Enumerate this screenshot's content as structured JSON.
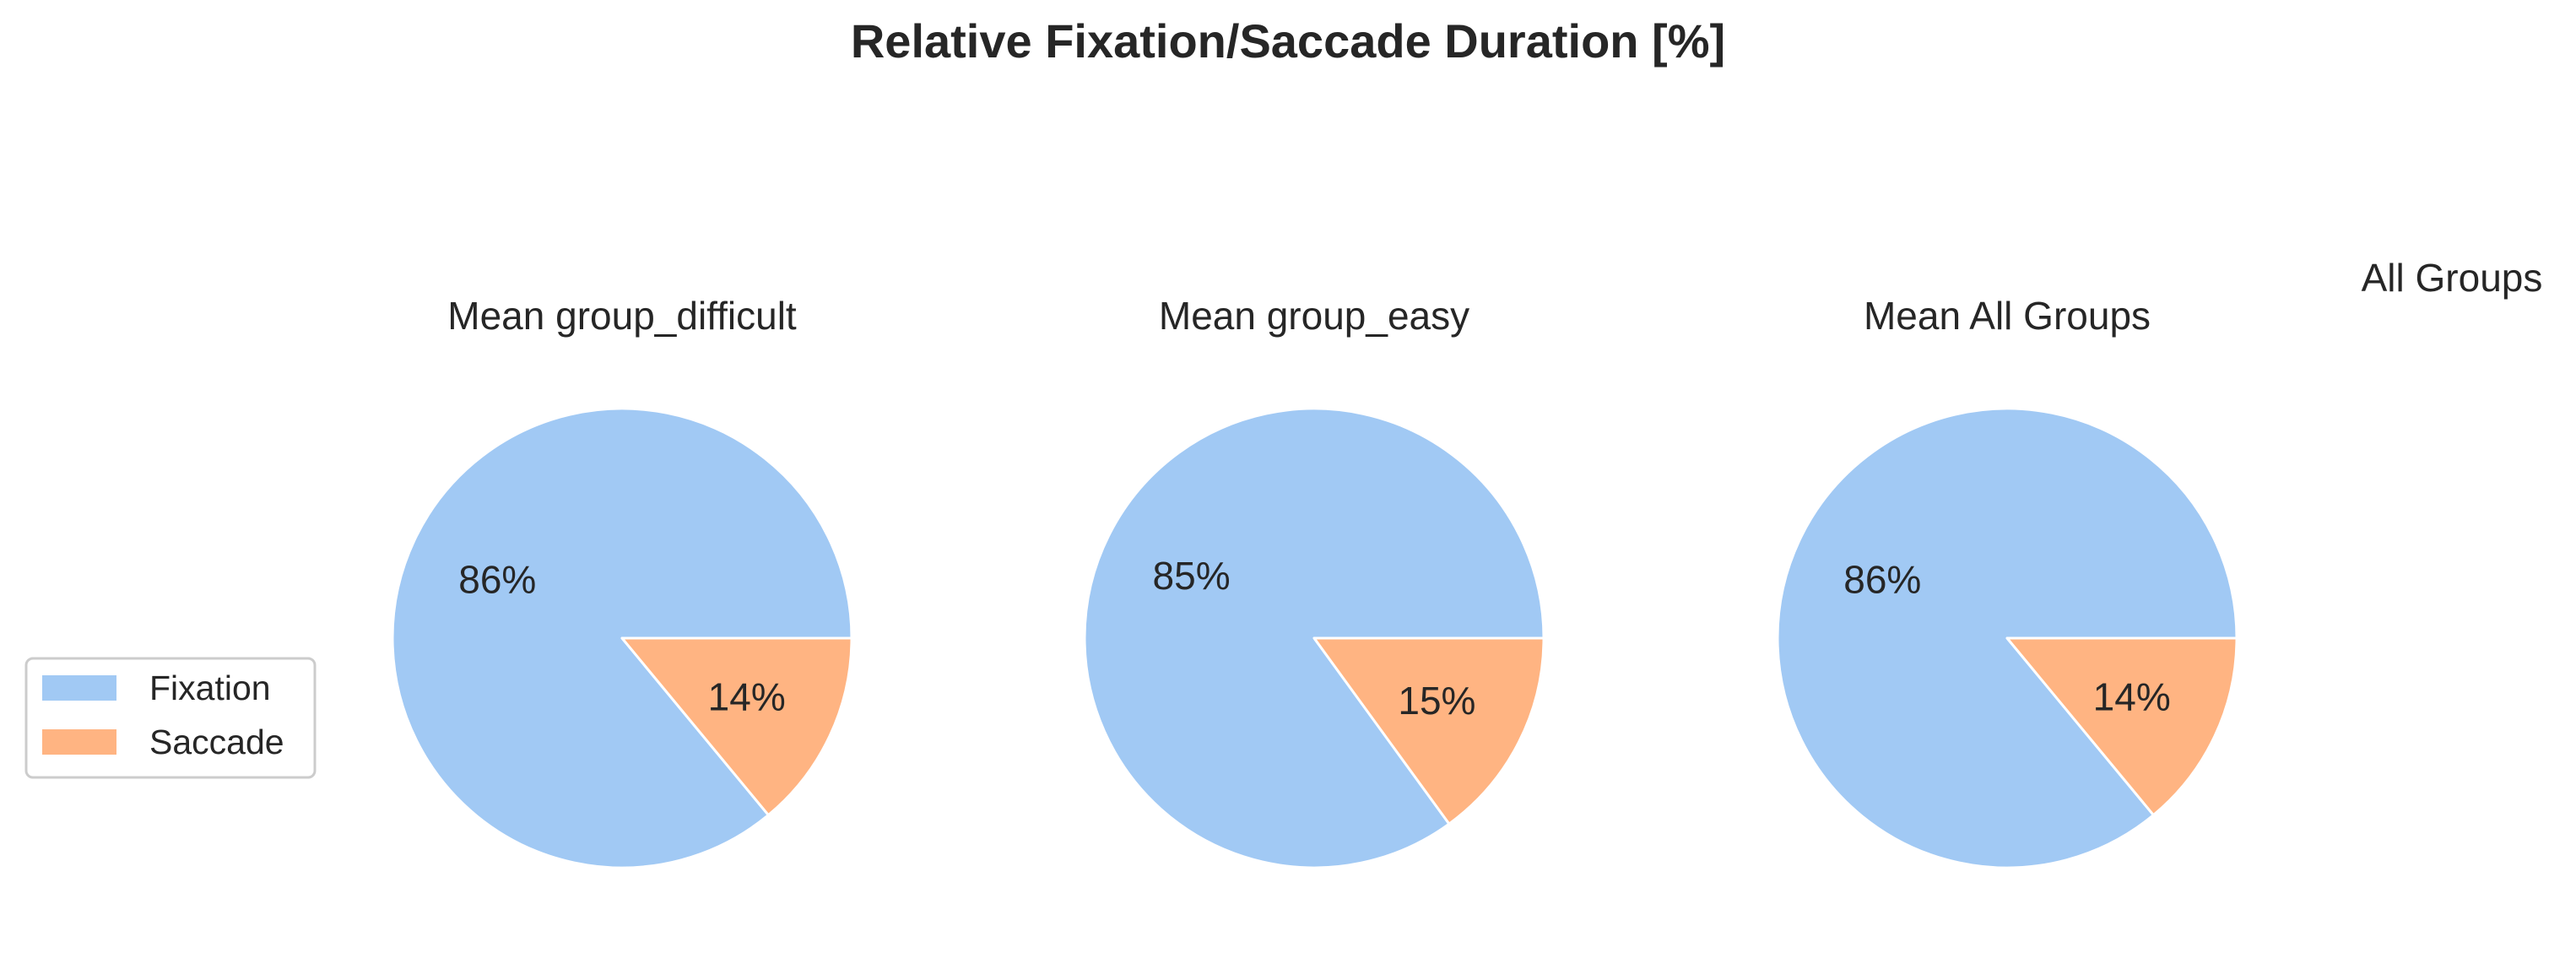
{
  "chart_data": {
    "type": "pie",
    "title": "Relative Fixation/Saccade Duration [%]",
    "categories": [
      "Fixation",
      "Saccade"
    ],
    "colors": {
      "Fixation": "#a1c9f4",
      "Saccade": "#ffb482"
    },
    "charts": [
      {
        "title": "Mean group_difficult",
        "values": [
          86,
          14
        ],
        "labels": [
          "86%",
          "14%"
        ]
      },
      {
        "title": "Mean group_easy",
        "values": [
          85,
          15
        ],
        "labels": [
          "85%",
          "15%"
        ]
      },
      {
        "title": "Mean All Groups",
        "values": [
          86,
          14
        ],
        "labels": [
          "86%",
          "14%"
        ]
      }
    ],
    "extra_label": "All Groups",
    "legend": {
      "placement": "left",
      "entries": [
        "Fixation",
        "Saccade"
      ]
    }
  }
}
